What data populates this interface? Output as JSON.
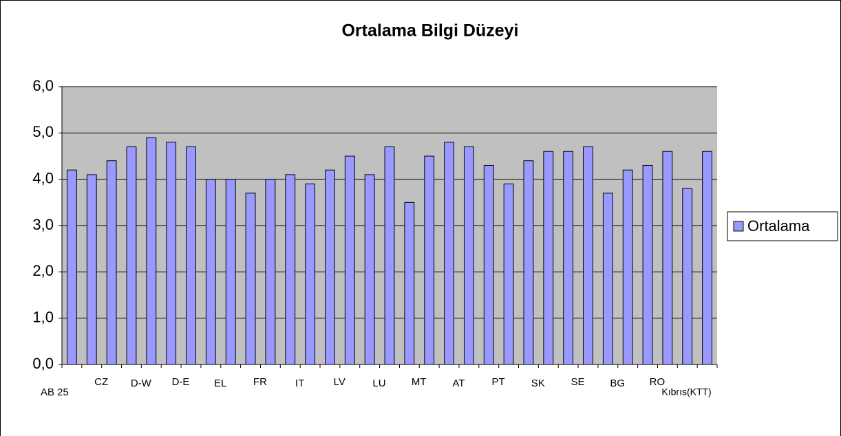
{
  "chart_data": {
    "type": "bar",
    "title": "Ortalama Bilgi Düzeyi",
    "categories": [
      "AB 25",
      null,
      "CZ",
      null,
      "D-W",
      null,
      "D-E",
      null,
      "EL",
      null,
      "FR",
      null,
      "IT",
      null,
      "LV",
      null,
      "LU",
      null,
      "MT",
      null,
      "AT",
      null,
      "PT",
      null,
      "SK",
      null,
      "SE",
      null,
      "BG",
      null,
      "RO",
      null,
      "Kıbrıs(KTT)"
    ],
    "series": [
      {
        "name": "Ortalama",
        "color": "#9999ff",
        "values": [
          4.2,
          4.1,
          4.4,
          4.7,
          4.9,
          4.8,
          4.7,
          4.0,
          4.0,
          3.7,
          4.0,
          4.1,
          3.9,
          4.2,
          4.5,
          4.1,
          4.7,
          3.5,
          4.5,
          4.8,
          4.7,
          4.3,
          3.9,
          4.4,
          4.6,
          4.6,
          4.7,
          3.7,
          4.2,
          4.3,
          4.6,
          3.8,
          4.6
        ]
      }
    ],
    "ylim": [
      0,
      6
    ],
    "yticks": [
      {
        "value": 0,
        "label": "0,0"
      },
      {
        "value": 1,
        "label": "1,0"
      },
      {
        "value": 2,
        "label": "2,0"
      },
      {
        "value": 3,
        "label": "3,0"
      },
      {
        "value": 4,
        "label": "4,0"
      },
      {
        "value": 5,
        "label": "5,0"
      },
      {
        "value": 6,
        "label": "6,0"
      }
    ],
    "grid": true,
    "legend": "right"
  }
}
